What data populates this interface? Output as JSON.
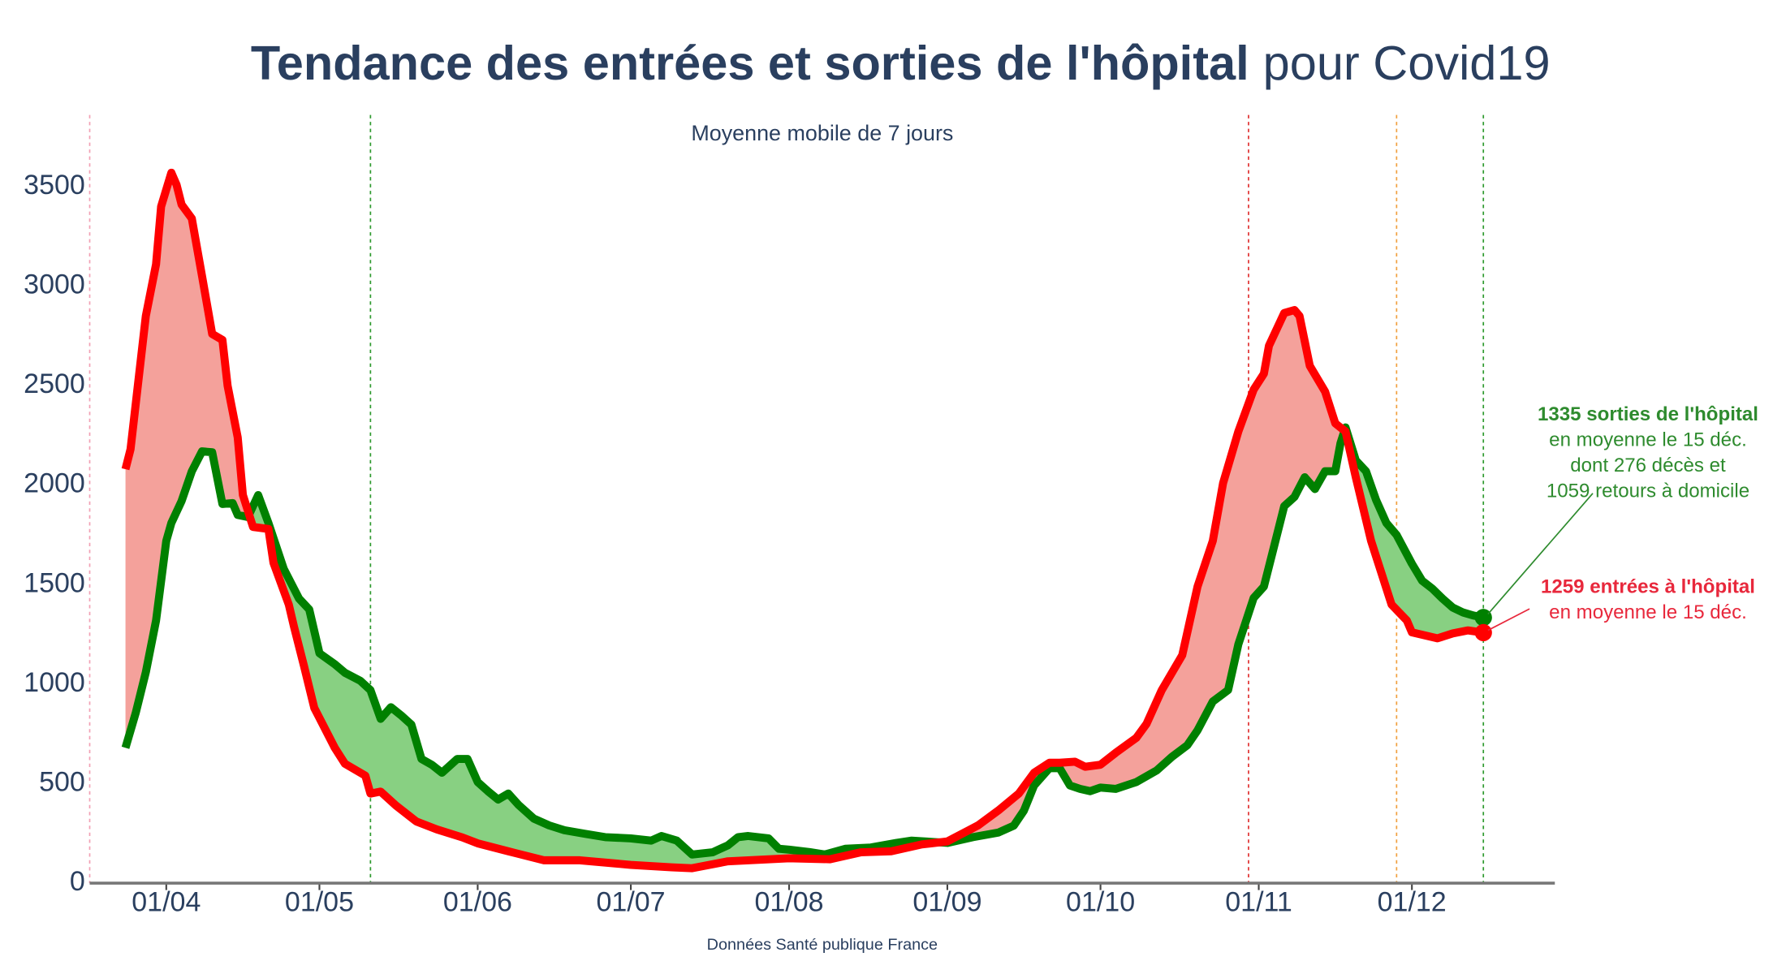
{
  "chart_data": {
    "type": "line",
    "title": "Tendance des entrées et sorties de l'hôpital",
    "title_suffix": "pour Covid19",
    "subtitle": "Moyenne mobile de 7 jours",
    "source": "Données Santé publique France",
    "xlim": [
      "17/03",
      "29/12"
    ],
    "xticks": [
      "01/04",
      "01/05",
      "01/06",
      "01/07",
      "01/08",
      "01/09",
      "01/10",
      "01/11",
      "01/12"
    ],
    "ylim": [
      0,
      3860
    ],
    "yticks": [
      0,
      500,
      1000,
      1500,
      2000,
      2500,
      3000,
      3500
    ],
    "fill_between": true,
    "events": [
      {
        "x": "17/03",
        "color": "#f2a0b4"
      },
      {
        "x": "11/05",
        "color": "#2e9a2e"
      },
      {
        "x": "30/10",
        "color": "#e03030"
      },
      {
        "x": "28/11",
        "color": "#f0a040"
      },
      {
        "x": "15/12",
        "color": "#2e9a2e"
      }
    ],
    "series": [
      {
        "color": "#008000",
        "fill_color": "#88d082",
        "x": [
          "24/03",
          "26/03",
          "28/03",
          "30/03",
          "01/04",
          "02/04",
          "04/04",
          "06/04",
          "08/04",
          "10/04",
          "12/04",
          "14/04",
          "15/04",
          "17/04",
          "19/04",
          "21/04",
          "24/04",
          "27/04",
          "29/04",
          "01/05",
          "04/05",
          "06/05",
          "09/05",
          "11/05",
          "13/05",
          "15/05",
          "17/05",
          "19/05",
          "21/05",
          "23/05",
          "25/05",
          "28/05",
          "30/05",
          "01/06",
          "03/06",
          "05/06",
          "07/06",
          "09/06",
          "12/06",
          "15/06",
          "18/06",
          "22/06",
          "26/06",
          "01/07",
          "05/07",
          "07/07",
          "10/07",
          "13/07",
          "17/07",
          "20/07",
          "22/07",
          "24/07",
          "28/07",
          "30/07",
          "01/08",
          "05/08",
          "08/08",
          "12/08",
          "17/08",
          "22/08",
          "25/08",
          "01/09",
          "06/09",
          "11/09",
          "14/09",
          "16/09",
          "18/09",
          "21/09",
          "23/09",
          "25/09",
          "27/09",
          "29/09",
          "01/10",
          "04/10",
          "08/10",
          "12/10",
          "15/10",
          "18/10",
          "20/10",
          "23/10",
          "26/10",
          "28/10",
          "31/10",
          "02/11",
          "04/11",
          "06/11",
          "08/11",
          "10/11",
          "12/11",
          "14/11",
          "16/11",
          "17/11",
          "18/11",
          "20/11",
          "22/11",
          "24/11",
          "26/11",
          "28/11",
          "01/12",
          "03/12",
          "05/12",
          "07/12",
          "09/12",
          "11/12",
          "13/12",
          "15/12"
        ],
        "values": [
          680,
          855,
          1060,
          1320,
          1720,
          1810,
          1920,
          2070,
          2170,
          2165,
          1905,
          1910,
          1850,
          1840,
          1950,
          1810,
          1580,
          1430,
          1375,
          1155,
          1100,
          1057,
          1017,
          970,
          826,
          884,
          843,
          797,
          624,
          595,
          555,
          624,
          624,
          508,
          462,
          420,
          450,
          393,
          324,
          290,
          266,
          248,
          231,
          225,
          214,
          237,
          214,
          144,
          155,
          190,
          231,
          237,
          225,
          173,
          168,
          156,
          144,
          173,
          179,
          202,
          214,
          202,
          231,
          254,
          289,
          364,
          491,
          578,
          578,
          491,
          474,
          462,
          480,
          474,
          508,
          566,
          635,
          693,
          768,
          913,
          970,
          1200,
          1433,
          1490,
          1693,
          1895,
          1941,
          2040,
          1980,
          2070,
          2070,
          2210,
          2290,
          2125,
          2070,
          1925,
          1810,
          1750,
          1605,
          1520,
          1480,
          1430,
          1385,
          1360,
          1345,
          1335
        ]
      },
      {
        "color": "#ff0000",
        "fill_color": "#f4a19b",
        "x": [
          "24/03",
          "25/03",
          "28/03",
          "30/03",
          "31/03",
          "02/04",
          "03/04",
          "04/04",
          "06/04",
          "08/04",
          "10/04",
          "12/04",
          "13/04",
          "15/04",
          "16/04",
          "18/04",
          "21/04",
          "22/04",
          "25/04",
          "26/04",
          "28/04",
          "30/04",
          "01/05",
          "04/05",
          "06/05",
          "10/05",
          "11/05",
          "13/05",
          "16/05",
          "20/05",
          "24/05",
          "29/05",
          "01/06",
          "07/06",
          "14/06",
          "21/06",
          "01/07",
          "09/07",
          "13/07",
          "20/07",
          "01/08",
          "09/08",
          "15/08",
          "21/08",
          "27/08",
          "01/09",
          "07/09",
          "11/09",
          "15/09",
          "18/09",
          "21/09",
          "23/09",
          "26/09",
          "28/09",
          "01/10",
          "04/10",
          "08/10",
          "10/10",
          "13/10",
          "17/10",
          "20/10",
          "23/10",
          "25/10",
          "28/10",
          "31/10",
          "02/11",
          "03/11",
          "06/11",
          "08/11",
          "09/11",
          "11/11",
          "14/11",
          "16/11",
          "18/11",
          "20/11",
          "23/11",
          "27/11",
          "30/11",
          "01/12",
          "06/12",
          "09/12",
          "12/12",
          "15/12"
        ],
        "values": [
          2080,
          2180,
          2850,
          3110,
          3400,
          3570,
          3510,
          3410,
          3340,
          3050,
          2760,
          2730,
          2500,
          2240,
          1950,
          1790,
          1780,
          1610,
          1400,
          1290,
          1090,
          880,
          830,
          680,
          600,
          540,
          450,
          460,
          390,
          310,
          270,
          230,
          200,
          160,
          115,
          115,
          92,
          80,
          75,
          110,
          125,
          120,
          155,
          160,
          195,
          210,
          290,
          365,
          450,
          555,
          605,
          605,
          610,
          585,
          595,
          655,
          730,
          800,
          970,
          1145,
          1490,
          1720,
          2010,
          2270,
          2480,
          2560,
          2700,
          2865,
          2880,
          2850,
          2600,
          2470,
          2310,
          2270,
          2040,
          1720,
          1400,
          1320,
          1260,
          1230,
          1255,
          1270,
          1259
        ]
      }
    ],
    "annotations": [
      {
        "series": 0,
        "color": "#2e8b2e",
        "lines": [
          "1335 sorties de l'hôpital",
          "en moyenne le 15 déc.",
          "dont 276 décès et",
          "1059 retours à domicile"
        ]
      },
      {
        "series": 1,
        "color": "#e8283c",
        "lines": [
          "1259 entrées à l'hôpital",
          "en moyenne le 15 déc."
        ]
      }
    ]
  }
}
